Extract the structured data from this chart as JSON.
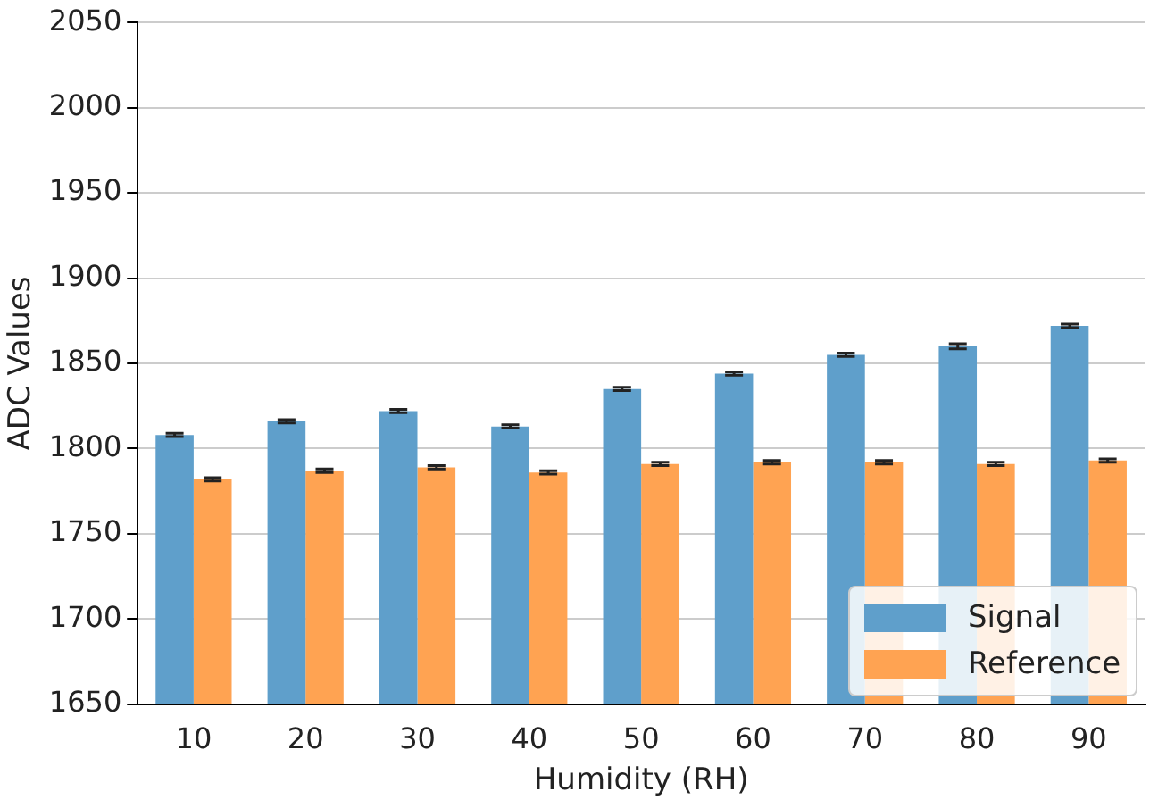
{
  "chart_data": {
    "type": "bar",
    "xlabel": "Humidity (RH)",
    "ylabel": "ADC Values",
    "categories": [
      "10",
      "20",
      "30",
      "40",
      "50",
      "60",
      "70",
      "80",
      "90"
    ],
    "series": [
      {
        "name": "Signal",
        "color": "#5f9fcb",
        "values": [
          1808,
          1816,
          1822,
          1813,
          1835,
          1844,
          1855,
          1860,
          1872
        ],
        "errors": [
          1,
          1,
          1,
          1,
          1,
          1,
          1,
          1.5,
          1
        ]
      },
      {
        "name": "Reference",
        "color": "#ffa352",
        "values": [
          1782,
          1787,
          1789,
          1786,
          1791,
          1792,
          1792,
          1791,
          1793
        ],
        "errors": [
          1,
          1,
          1,
          1,
          1,
          1,
          1,
          1,
          1
        ]
      }
    ],
    "ylim": [
      1650,
      2050
    ],
    "yticks": [
      1650,
      1700,
      1750,
      1800,
      1850,
      1900,
      1950,
      2000,
      2050
    ],
    "grid": "y",
    "legend": "bottom right"
  }
}
